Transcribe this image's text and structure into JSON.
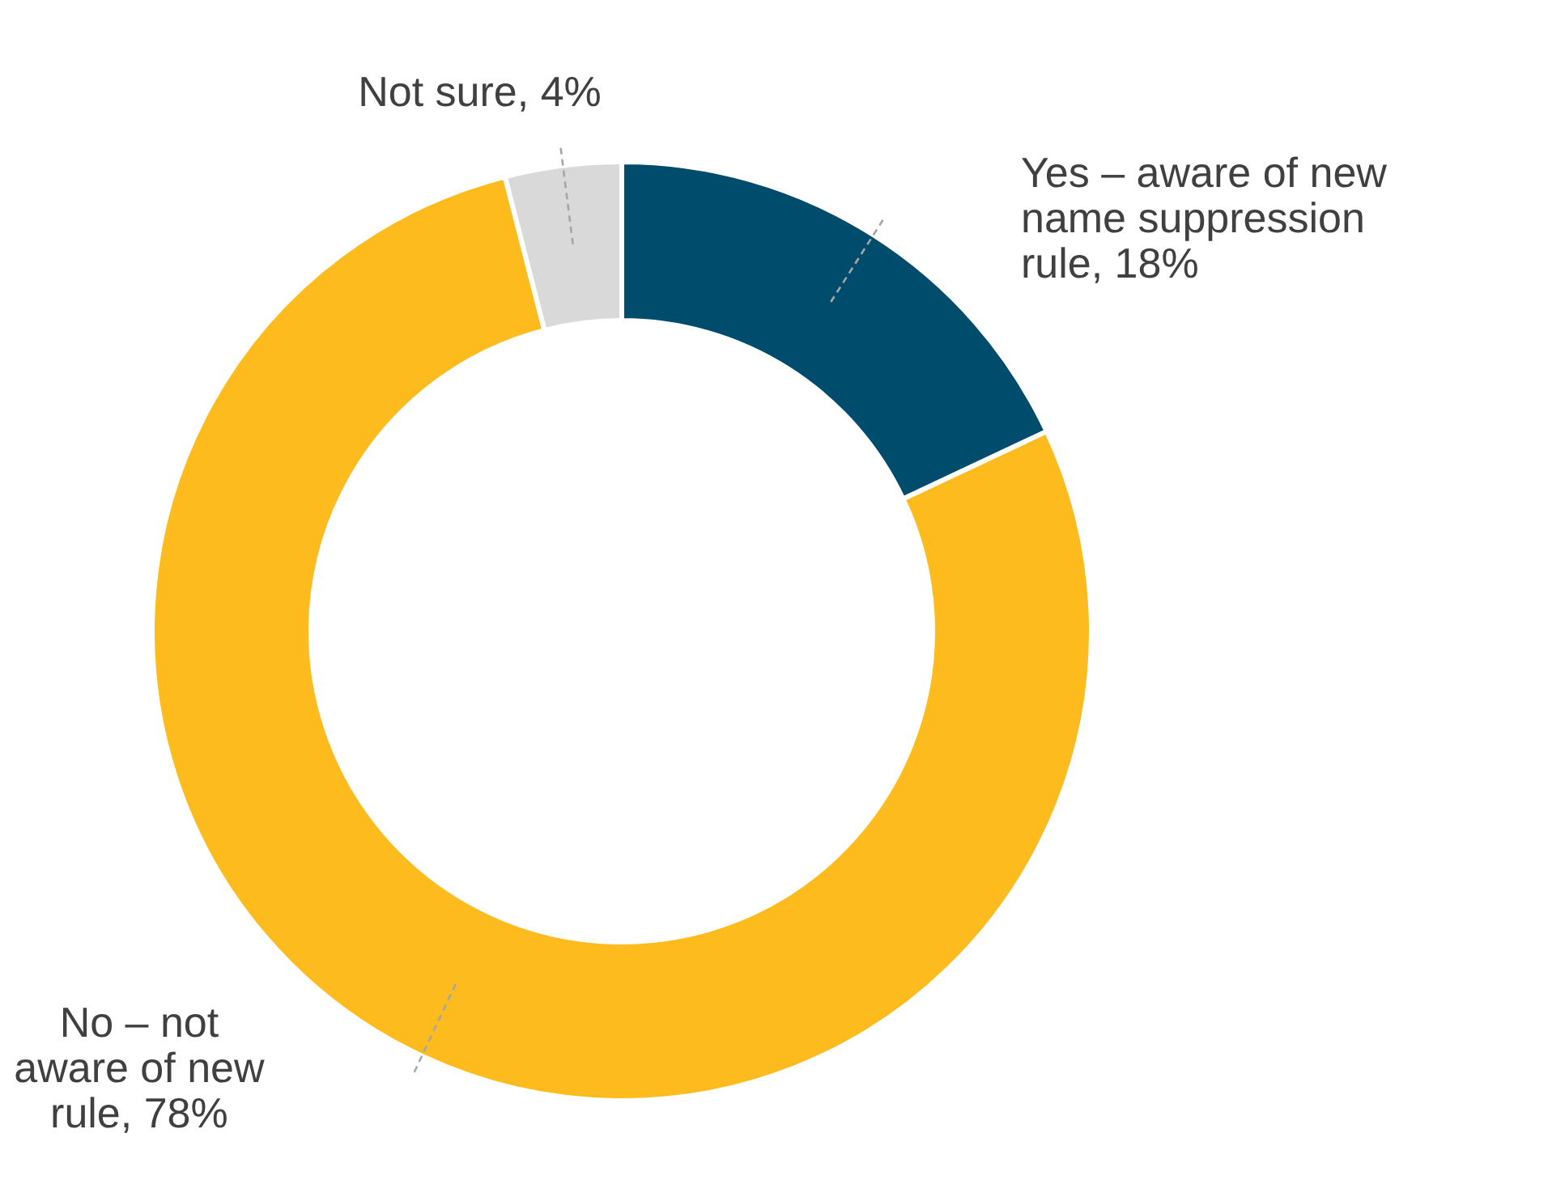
{
  "chart_data": {
    "type": "donut",
    "categories": [
      "Yes – aware of new name suppression rule",
      "No – not aware of new rule",
      "Not sure"
    ],
    "values": [
      18,
      78,
      4
    ],
    "value_labels": [
      "18%",
      "78%",
      "4%"
    ],
    "colors": [
      "#004c6d",
      "#fdbb1d",
      "#d9d9d9"
    ]
  }
}
